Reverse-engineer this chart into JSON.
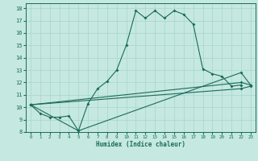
{
  "xlabel": "Humidex (Indice chaleur)",
  "xlim": [
    -0.5,
    23.5
  ],
  "ylim": [
    8,
    18.4
  ],
  "yticks": [
    8,
    9,
    10,
    11,
    12,
    13,
    14,
    15,
    16,
    17,
    18
  ],
  "xticks": [
    0,
    1,
    2,
    3,
    4,
    5,
    6,
    7,
    8,
    9,
    10,
    11,
    12,
    13,
    14,
    15,
    16,
    17,
    18,
    19,
    20,
    21,
    22,
    23
  ],
  "background_color": "#c5e8e0",
  "grid_color": "#a8d4cc",
  "line_color": "#1a6b5a",
  "main_x": [
    0,
    1,
    2,
    3,
    4,
    5,
    6,
    7,
    8,
    9,
    10,
    11,
    12,
    13,
    14,
    15,
    16,
    17,
    18,
    19,
    20,
    21,
    22
  ],
  "main_y": [
    10.2,
    9.5,
    9.2,
    9.2,
    9.3,
    8.1,
    10.3,
    11.5,
    12.1,
    13.0,
    15.0,
    17.8,
    17.2,
    17.8,
    17.2,
    17.8,
    17.5,
    16.7,
    13.1,
    12.7,
    12.5,
    11.7,
    11.8
  ],
  "trend1_x": [
    0,
    22,
    23
  ],
  "trend1_y": [
    10.2,
    11.5,
    11.7
  ],
  "trend2_x": [
    0,
    22,
    23
  ],
  "trend2_y": [
    10.2,
    12.0,
    11.8
  ],
  "trend3_x": [
    0,
    5,
    22,
    23
  ],
  "trend3_y": [
    10.2,
    8.1,
    12.8,
    11.8
  ]
}
